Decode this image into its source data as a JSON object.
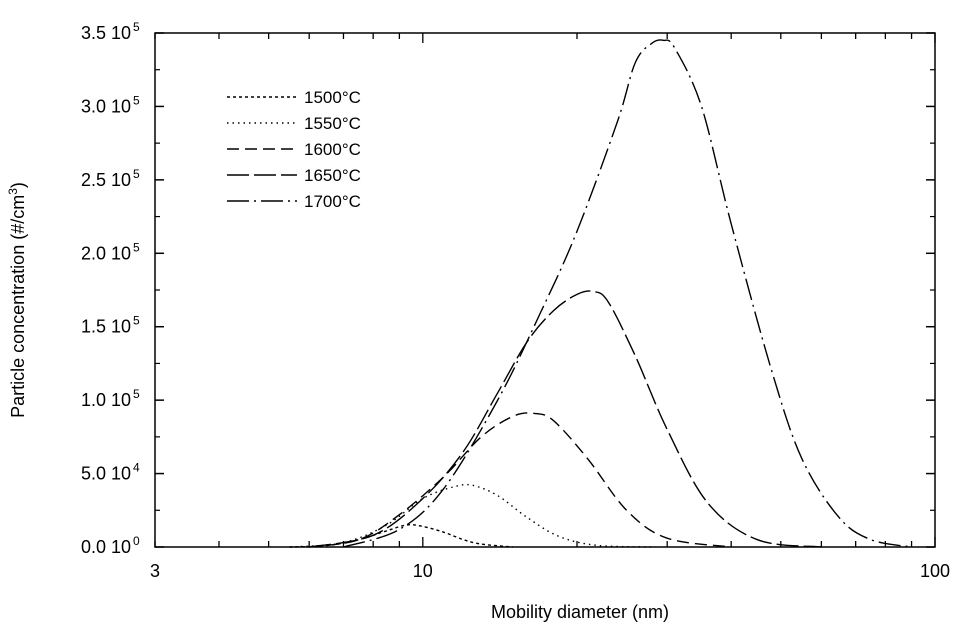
{
  "chart_data": {
    "type": "line",
    "xlabel": "Mobility diameter (nm)",
    "ylabel": "Particle concentration (#/cm",
    "ylabel_sup": "3",
    "ylabel_end": ")",
    "x_scale": "log",
    "xlim": [
      3,
      100
    ],
    "ylim": [
      0,
      350000
    ],
    "grid": false,
    "legend_position": "top-left",
    "x_ticks": [
      {
        "value": 3,
        "label": "3"
      },
      {
        "value": 10,
        "label": "10"
      },
      {
        "value": 100,
        "label": "100"
      }
    ],
    "y_ticks": [
      {
        "value": 0,
        "mant": "0.0 10",
        "exp": "0"
      },
      {
        "value": 50000,
        "mant": "5.0 10",
        "exp": "4"
      },
      {
        "value": 100000,
        "mant": "1.0 10",
        "exp": "5"
      },
      {
        "value": 150000,
        "mant": "1.5 10",
        "exp": "5"
      },
      {
        "value": 200000,
        "mant": "2.0 10",
        "exp": "5"
      },
      {
        "value": 250000,
        "mant": "2.5 10",
        "exp": "5"
      },
      {
        "value": 300000,
        "mant": "3.0 10",
        "exp": "5"
      },
      {
        "value": 350000,
        "mant": "3.5 10",
        "exp": "5"
      }
    ],
    "series": [
      {
        "name": "1500°C",
        "dash": "3,3",
        "x": [
          5.5,
          6.5,
          7.5,
          8.5,
          9.3,
          10,
          11,
          12,
          13,
          15
        ],
        "y": [
          0,
          1000,
          5000,
          11000,
          15000,
          14000,
          10000,
          5000,
          2000,
          0
        ]
      },
      {
        "name": "1550°C",
        "dash": "1.5,4",
        "x": [
          5.5,
          7,
          8.5,
          10,
          11.5,
          12.5,
          14,
          16,
          18.5,
          22,
          28
        ],
        "y": [
          0,
          3000,
          15000,
          33000,
          41000,
          42000,
          35000,
          20000,
          7000,
          1000,
          0
        ]
      },
      {
        "name": "1600°C",
        "dash": "12,6",
        "x": [
          6,
          7.5,
          9,
          11,
          13,
          15,
          16.5,
          18,
          21,
          25,
          30,
          40
        ],
        "y": [
          0,
          5000,
          22000,
          48000,
          75000,
          89000,
          91000,
          86000,
          60000,
          25000,
          6000,
          0
        ]
      },
      {
        "name": "1650°C",
        "dash": "22,5",
        "x": [
          6,
          8,
          10,
          12,
          14,
          16,
          18,
          20,
          21.5,
          23,
          26,
          30,
          36,
          45,
          60
        ],
        "y": [
          0,
          8000,
          33000,
          65000,
          105000,
          140000,
          161000,
          172000,
          174000,
          167000,
          130000,
          80000,
          30000,
          5000,
          0
        ]
      },
      {
        "name": "1700°C",
        "dash": "22,5,2,5",
        "x": [
          7,
          9,
          11,
          14,
          17,
          20,
          24,
          26,
          28,
          29.5,
          31,
          35,
          40,
          48,
          55,
          65,
          75,
          90
        ],
        "y": [
          0,
          12000,
          40000,
          100000,
          160000,
          215000,
          290000,
          330000,
          343000,
          345000,
          340000,
          300000,
          220000,
          120000,
          60000,
          20000,
          5000,
          0
        ]
      }
    ]
  }
}
